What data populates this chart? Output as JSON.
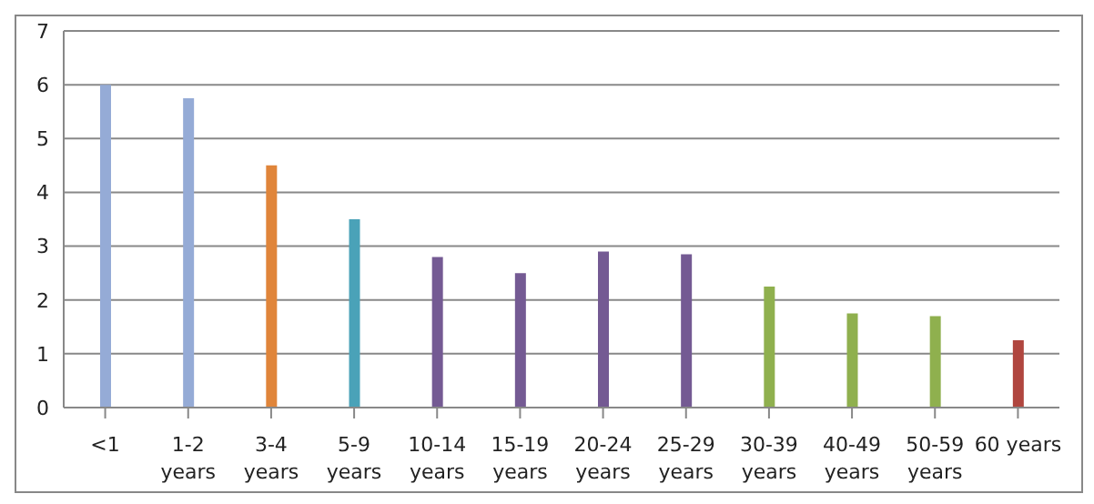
{
  "chart_data": {
    "type": "bar",
    "categories": [
      "<1",
      "1-2 years",
      "3-4 years",
      "5-9 years",
      "10-14 years",
      "15-19 years",
      "20-24 years",
      "25-29 years",
      "30-39 years",
      "40-49 years",
      "50-59 years",
      "60 years"
    ],
    "values": [
      6,
      5.75,
      4.5,
      3.5,
      2.8,
      2.5,
      2.9,
      2.85,
      2.25,
      1.75,
      1.7,
      1.25
    ],
    "colors": [
      "#95abd6",
      "#95abd6",
      "#e0853a",
      "#4aa2b8",
      "#745a93",
      "#745a93",
      "#745a93",
      "#745a93",
      "#8fb04e",
      "#8fb04e",
      "#8fb04e",
      "#b0463f"
    ],
    "ylim": [
      0,
      7
    ],
    "yticks": [
      0,
      1,
      2,
      3,
      4,
      5,
      6,
      7
    ],
    "grid": "y",
    "legend": false
  }
}
